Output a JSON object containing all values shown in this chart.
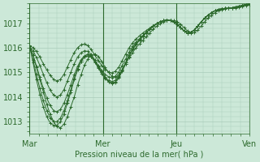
{
  "bg_color": "#cce8d8",
  "grid_color": "#aaccbb",
  "line_color": "#2d6a2d",
  "marker_color": "#2d6a2d",
  "xlabel": "Pression niveau de la mer( hPa )",
  "xlabel_color": "#2d6a2d",
  "tick_color": "#2d6a2d",
  "ylim": [
    1012.5,
    1017.8
  ],
  "yticks": [
    1013,
    1014,
    1015,
    1016,
    1017
  ],
  "xtick_labels": [
    "Mar",
    "Mer",
    "Jeu",
    "Ven"
  ],
  "xtick_positions": [
    0,
    48,
    96,
    144
  ],
  "series": [
    [
      1016.1,
      1015.7,
      1015.2,
      1014.7,
      1014.2,
      1013.7,
      1013.3,
      1013.0,
      1012.8,
      1012.75,
      1012.9,
      1013.2,
      1013.6,
      1014.0,
      1014.5,
      1014.9,
      1015.3,
      1015.55,
      1015.7,
      1015.75,
      1015.65,
      1015.45,
      1015.2,
      1015.0,
      1014.85,
      1014.8,
      1014.9,
      1015.1,
      1015.35,
      1015.6,
      1015.8,
      1016.0,
      1016.15,
      1016.3,
      1016.45,
      1016.6,
      1016.75,
      1016.87,
      1016.97,
      1017.05,
      1017.1,
      1017.12,
      1017.1,
      1017.05,
      1016.95,
      1016.82,
      1016.68,
      1016.6,
      1016.62,
      1016.72,
      1016.88,
      1017.05,
      1017.2,
      1017.32,
      1017.42,
      1017.5,
      1017.55,
      1017.58,
      1017.6,
      1017.6,
      1017.62,
      1017.65,
      1017.68,
      1017.72,
      1017.75
    ],
    [
      1016.1,
      1015.4,
      1014.7,
      1014.1,
      1013.6,
      1013.2,
      1012.95,
      1012.85,
      1012.85,
      1013.0,
      1013.3,
      1013.75,
      1014.2,
      1014.7,
      1015.1,
      1015.45,
      1015.65,
      1015.75,
      1015.7,
      1015.5,
      1015.25,
      1015.0,
      1014.78,
      1014.62,
      1014.55,
      1014.6,
      1014.78,
      1015.05,
      1015.35,
      1015.65,
      1015.92,
      1016.12,
      1016.3,
      1016.45,
      1016.6,
      1016.75,
      1016.87,
      1016.97,
      1017.05,
      1017.1,
      1017.12,
      1017.1,
      1017.05,
      1016.95,
      1016.82,
      1016.68,
      1016.6,
      1016.62,
      1016.72,
      1016.88,
      1017.05,
      1017.2,
      1017.32,
      1017.42,
      1017.5,
      1017.55,
      1017.58,
      1017.6,
      1017.6,
      1017.62,
      1017.65,
      1017.68,
      1017.72,
      1017.75,
      1017.78
    ],
    [
      1016.05,
      1015.5,
      1014.9,
      1014.35,
      1013.85,
      1013.45,
      1013.15,
      1013.0,
      1013.0,
      1013.15,
      1013.45,
      1013.85,
      1014.3,
      1014.75,
      1015.15,
      1015.45,
      1015.62,
      1015.68,
      1015.62,
      1015.42,
      1015.18,
      1014.95,
      1014.75,
      1014.62,
      1014.55,
      1014.62,
      1014.8,
      1015.08,
      1015.4,
      1015.7,
      1015.95,
      1016.15,
      1016.32,
      1016.47,
      1016.62,
      1016.75,
      1016.87,
      1016.97,
      1017.05,
      1017.1,
      1017.12,
      1017.1,
      1017.05,
      1016.95,
      1016.82,
      1016.68,
      1016.6,
      1016.62,
      1016.72,
      1016.88,
      1017.05,
      1017.2,
      1017.32,
      1017.42,
      1017.5,
      1017.55,
      1017.58,
      1017.6,
      1017.6,
      1017.62,
      1017.65,
      1017.68,
      1017.72,
      1017.75,
      1017.78
    ],
    [
      1016.05,
      1015.7,
      1015.25,
      1014.8,
      1014.35,
      1013.95,
      1013.65,
      1013.45,
      1013.4,
      1013.5,
      1013.75,
      1014.1,
      1014.5,
      1014.9,
      1015.25,
      1015.52,
      1015.68,
      1015.72,
      1015.65,
      1015.45,
      1015.22,
      1015.0,
      1014.8,
      1014.68,
      1014.62,
      1014.68,
      1014.85,
      1015.12,
      1015.4,
      1015.7,
      1015.95,
      1016.15,
      1016.32,
      1016.47,
      1016.62,
      1016.75,
      1016.87,
      1016.97,
      1017.05,
      1017.1,
      1017.12,
      1017.1,
      1017.05,
      1016.95,
      1016.82,
      1016.68,
      1016.6,
      1016.62,
      1016.72,
      1016.88,
      1017.05,
      1017.2,
      1017.32,
      1017.42,
      1017.5,
      1017.55,
      1017.58,
      1017.6,
      1017.6,
      1017.62,
      1017.65,
      1017.68,
      1017.72,
      1017.75,
      1017.78
    ],
    [
      1016.05,
      1015.88,
      1015.6,
      1015.28,
      1014.92,
      1014.58,
      1014.28,
      1014.08,
      1014.0,
      1014.08,
      1014.3,
      1014.65,
      1015.0,
      1015.35,
      1015.62,
      1015.8,
      1015.88,
      1015.85,
      1015.72,
      1015.5,
      1015.28,
      1015.08,
      1014.92,
      1014.82,
      1014.78,
      1014.85,
      1015.02,
      1015.28,
      1015.55,
      1015.82,
      1016.05,
      1016.22,
      1016.37,
      1016.5,
      1016.63,
      1016.75,
      1016.87,
      1016.97,
      1017.05,
      1017.1,
      1017.12,
      1017.1,
      1017.05,
      1016.95,
      1016.82,
      1016.68,
      1016.6,
      1016.62,
      1016.72,
      1016.88,
      1017.05,
      1017.2,
      1017.32,
      1017.42,
      1017.5,
      1017.55,
      1017.58,
      1017.6,
      1017.6,
      1017.62,
      1017.65,
      1017.68,
      1017.72,
      1017.75,
      1017.78
    ],
    [
      1016.1,
      1016.0,
      1015.85,
      1015.62,
      1015.35,
      1015.1,
      1014.88,
      1014.72,
      1014.65,
      1014.72,
      1014.92,
      1015.22,
      1015.52,
      1015.8,
      1016.0,
      1016.12,
      1016.15,
      1016.08,
      1015.92,
      1015.7,
      1015.48,
      1015.28,
      1015.12,
      1015.02,
      1014.98,
      1015.05,
      1015.22,
      1015.48,
      1015.75,
      1016.0,
      1016.2,
      1016.35,
      1016.48,
      1016.6,
      1016.7,
      1016.8,
      1016.9,
      1016.98,
      1017.05,
      1017.1,
      1017.12,
      1017.1,
      1017.05,
      1016.95,
      1016.82,
      1016.68,
      1016.6,
      1016.62,
      1016.72,
      1016.88,
      1017.05,
      1017.2,
      1017.32,
      1017.42,
      1017.5,
      1017.55,
      1017.58,
      1017.6,
      1017.6,
      1017.62,
      1017.65,
      1017.68,
      1017.72,
      1017.75,
      1017.78
    ]
  ]
}
